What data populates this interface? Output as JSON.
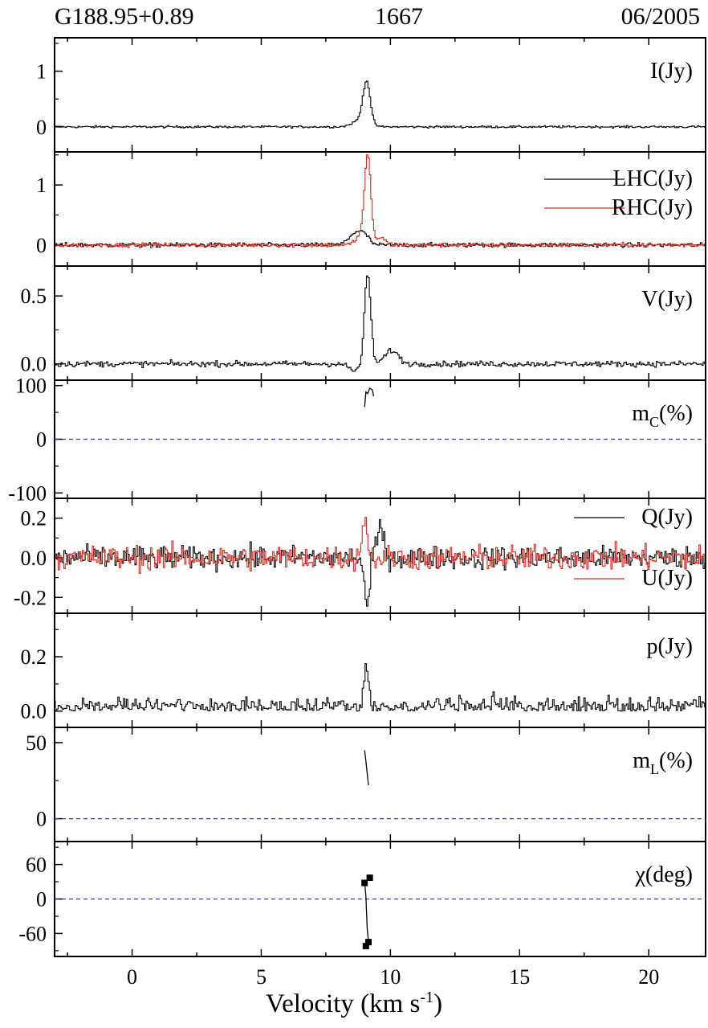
{
  "header": {
    "source": "G188.95+0.89",
    "frequency": "1667",
    "epoch": "06/2005"
  },
  "colors": {
    "black": "#000000",
    "red": "#d42a1f",
    "dashed": "#3a3aa8"
  },
  "chart_data": {
    "type": "line",
    "x_axis": {
      "label": "Velocity (km s",
      "label_sup": "-1",
      "label_close": ")",
      "range": [
        -3.0,
        22.2
      ],
      "ticks": [
        "0",
        "5",
        "10",
        "15",
        "20"
      ],
      "tick_values": [
        0,
        5,
        10,
        15,
        20
      ]
    },
    "panels": [
      {
        "id": "I",
        "label": "I(Jy)",
        "label_sub": "",
        "label_rest": "",
        "yrange": [
          -0.45,
          1.6
        ],
        "yticks": [
          "0",
          "1"
        ],
        "ytick_values": [
          0,
          1
        ],
        "series": [
          {
            "color": "#000000",
            "noise": 0.018,
            "peaks": [
              [
                8.85,
                0.12,
                0.3
              ],
              [
                9.08,
                0.74,
                0.14
              ]
            ]
          }
        ]
      },
      {
        "id": "LR",
        "label": "",
        "label_sub": "",
        "label_rest": "",
        "yrange": [
          -0.35,
          1.55
        ],
        "yticks": [
          "0",
          "1"
        ],
        "ytick_values": [
          0,
          1
        ],
        "series": [
          {
            "name": "LHC(Jy)",
            "color": "#000000",
            "noise": 0.035,
            "peaks": [
              [
                8.7,
                0.22,
                0.28
              ],
              [
                9.05,
                0.08,
                0.15
              ]
            ]
          },
          {
            "name": "RHC(Jy)",
            "color": "#d42a1f",
            "noise": 0.035,
            "peaks": [
              [
                9.12,
                1.45,
                0.12
              ],
              [
                8.85,
                0.15,
                0.2
              ],
              [
                9.6,
                0.12,
                0.2
              ]
            ]
          }
        ]
      },
      {
        "id": "V",
        "label": "V(Jy)",
        "label_sub": "",
        "label_rest": "",
        "yrange": [
          -0.12,
          0.72
        ],
        "yticks": [
          "0.0",
          "0.5"
        ],
        "ytick_values": [
          0.0,
          0.5
        ],
        "series": [
          {
            "color": "#000000",
            "noise": 0.02,
            "peaks": [
              [
                9.12,
                0.66,
                0.12
              ],
              [
                8.6,
                -0.05,
                0.2
              ],
              [
                10.05,
                0.1,
                0.25
              ]
            ]
          }
        ]
      },
      {
        "id": "mc",
        "label": "m",
        "label_sub": "C",
        "label_rest": "(%)",
        "yrange": [
          -110,
          110
        ],
        "yticks": [
          "100",
          "0",
          "-100"
        ],
        "ytick_values": [
          100,
          0,
          -100
        ],
        "dashed_zero": true,
        "fragment": {
          "x": [
            9.0,
            9.05,
            9.12,
            9.2,
            9.3,
            9.35
          ],
          "y": [
            60,
            88,
            85,
            95,
            92,
            80
          ]
        }
      },
      {
        "id": "QU",
        "label": "",
        "label_sub": "",
        "label_rest": "",
        "yrange": [
          -0.28,
          0.3
        ],
        "yticks": [
          "0.2",
          "0.0",
          "-0.2"
        ],
        "ytick_values": [
          0.2,
          0.0,
          -0.2
        ],
        "series": [
          {
            "name": "Q(Jy)",
            "color": "#000000",
            "noise": 0.055,
            "peaks": [
              [
                9.1,
                -0.26,
                0.1
              ],
              [
                9.6,
                0.14,
                0.15
              ]
            ]
          },
          {
            "name": "U(Jy)",
            "color": "#d42a1f",
            "noise": 0.06,
            "peaks": [
              [
                9.0,
                0.2,
                0.1
              ]
            ]
          }
        ]
      },
      {
        "id": "p",
        "label": "p(Jy)",
        "label_sub": "",
        "label_rest": "",
        "yrange": [
          -0.06,
          0.36
        ],
        "yticks": [
          "0.2",
          "0.0"
        ],
        "ytick_values": [
          0.2,
          0.0
        ],
        "series": [
          {
            "color": "#000000",
            "noise": 0.045,
            "positive": true,
            "peaks": [
              [
                9.05,
                0.18,
                0.1
              ]
            ]
          }
        ]
      },
      {
        "id": "mL",
        "label": "m",
        "label_sub": "L",
        "label_rest": "(%)",
        "yrange": [
          -15,
          60
        ],
        "yticks": [
          "50",
          "0"
        ],
        "ytick_values": [
          50,
          0
        ],
        "dashed_zero": true,
        "fragment": {
          "x": [
            9.0,
            9.05,
            9.1,
            9.15
          ],
          "y": [
            45,
            38,
            30,
            22
          ]
        }
      },
      {
        "id": "chi",
        "label": "χ(deg)",
        "label_sub": "",
        "label_rest": "",
        "yrange": [
          -100,
          100
        ],
        "yticks": [
          "60",
          "0",
          "-60"
        ],
        "ytick_values": [
          60,
          0,
          -60
        ],
        "dashed_zero": true,
        "fragment": {
          "x": [
            9.0,
            9.05,
            9.1,
            9.15
          ],
          "y": [
            30,
            5,
            -50,
            -75
          ]
        },
        "markers": {
          "x": [
            9.0,
            9.2,
            9.15,
            9.05
          ],
          "y": [
            28,
            37,
            -75,
            -82
          ]
        }
      }
    ]
  }
}
